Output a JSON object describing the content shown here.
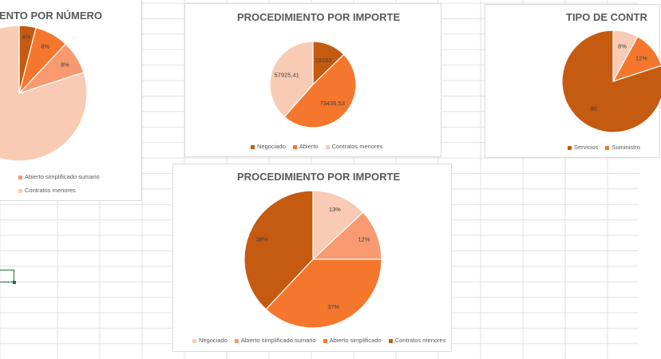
{
  "colors": {
    "grid": "#e1e1e1",
    "dark_orange": "#c55a11",
    "orange": "#f4772d",
    "salmon": "#f79a6f",
    "peach": "#f9cbb4",
    "title": "#595959",
    "selection": "#217346"
  },
  "charts": [
    {
      "title": "ENTO POR NÚMERO",
      "legend": [
        "Abierto simplificado sumario",
        "Contratos menores"
      ]
    },
    {
      "title": "PROCEDIMIENTO POR IMPORTE",
      "legend": [
        "Negociado",
        "Abierto",
        "Contratos menores"
      ]
    },
    {
      "title": "TIPO DE CONTR",
      "legend": [
        "Servicios",
        "Suministro"
      ]
    },
    {
      "title": "PROCEDIMIENTO POR IMPORTE",
      "legend": [
        "Negociado",
        "Abierto simplificado sumario",
        "Abierto simplificado",
        "Contratos menores"
      ]
    }
  ],
  "chart_data": [
    {
      "type": "pie",
      "title": "ENTO POR NÚMERO",
      "slices": [
        {
          "name": "",
          "value": 4,
          "label": "4%"
        },
        {
          "name": "",
          "value": 8,
          "label": "8%"
        },
        {
          "name": "Abierto simplificado sumario",
          "value": 8,
          "label": "8%"
        },
        {
          "name": "Contratos menores",
          "value": 80,
          "label": ""
        }
      ]
    },
    {
      "type": "pie",
      "title": "PROCEDIMIENTO POR IMPORTE",
      "slices": [
        {
          "name": "Negociado",
          "value": 19153,
          "label": "19153"
        },
        {
          "name": "Abierto",
          "value": 73435.53,
          "label": "73435,53"
        },
        {
          "name": "Contratos menores",
          "value": 57925.41,
          "label": "57925,41"
        }
      ]
    },
    {
      "type": "pie",
      "title": "TIPO DE CONTR",
      "slices": [
        {
          "name": "Servicios",
          "value": 80,
          "label": "80"
        },
        {
          "name": "Suministro",
          "value": 12,
          "label": "12%"
        },
        {
          "name": "",
          "value": 8,
          "label": "8%"
        }
      ]
    },
    {
      "type": "pie",
      "title": "PROCEDIMIENTO POR IMPORTE",
      "slices": [
        {
          "name": "Negociado",
          "value": 13,
          "label": "13%"
        },
        {
          "name": "Abierto simplificado sumario",
          "value": 12,
          "label": "12%"
        },
        {
          "name": "Abierto simplificado",
          "value": 37,
          "label": "37%"
        },
        {
          "name": "Contratos menores",
          "value": 38,
          "label": "38%"
        }
      ]
    }
  ]
}
